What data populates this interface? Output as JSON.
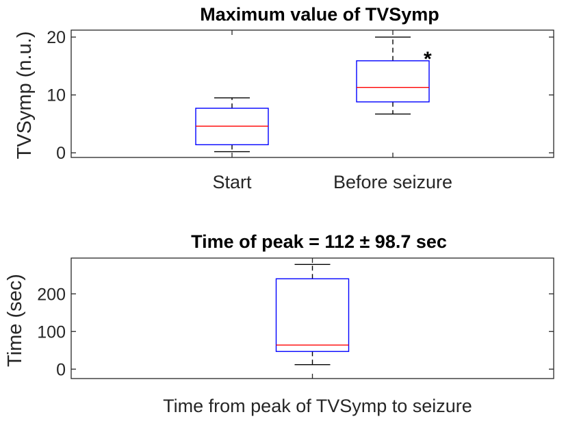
{
  "chart_data": [
    {
      "type": "box",
      "title": "Maximum value of TVSymp",
      "ylabel": "TVSymp (n.u.)",
      "xlabel": "",
      "ylim": [
        -0.8,
        21.2
      ],
      "yticks": [
        0,
        10,
        20
      ],
      "categories": [
        "Start",
        "Before seizure"
      ],
      "boxes": [
        {
          "label": "Start",
          "min": 0.2,
          "q1": 1.4,
          "median": 4.6,
          "q3": 7.7,
          "max": 9.5,
          "annotation": ""
        },
        {
          "label": "Before seizure",
          "min": 6.7,
          "q1": 8.8,
          "median": 11.3,
          "q3": 15.9,
          "max": 20.0,
          "annotation": "*"
        }
      ],
      "grid": false
    },
    {
      "type": "box",
      "title": "Time of peak = 112 ± 98.7 sec",
      "ylabel": "Time (sec)",
      "xlabel": "Time from peak of TVSymp to seizure",
      "ylim": [
        -25,
        295
      ],
      "yticks": [
        0,
        100,
        200
      ],
      "categories": [
        ""
      ],
      "boxes": [
        {
          "label": "",
          "min": 12,
          "q1": 47,
          "median": 64,
          "q3": 240,
          "max": 278,
          "annotation": ""
        }
      ],
      "grid": false
    }
  ]
}
